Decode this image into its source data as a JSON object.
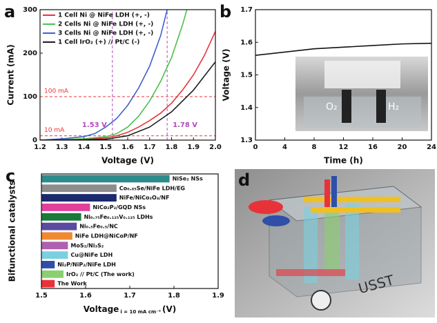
{
  "chart_data": [
    {
      "type": "line",
      "panel_label": "a",
      "xlabel": "Voltage (V)",
      "ylabel": "Current (mA)",
      "xlim": [
        1.2,
        2.0
      ],
      "ylim": [
        0,
        300
      ],
      "xticks": [
        1.2,
        1.3,
        1.4,
        1.5,
        1.6,
        1.7,
        1.8,
        1.9,
        {
          "value": 2.0,
          "label": "2.0"
        }
      ],
      "yticks": [
        0,
        100,
        200,
        300
      ],
      "legend": "upper left",
      "series": [
        {
          "name": "1 Cell  Ni @ NiFe LDH (+, -)",
          "color": "#e8323a",
          "x": [
            1.2,
            1.4,
            1.5,
            1.55,
            1.6,
            1.65,
            1.7,
            1.75,
            1.8,
            1.85,
            1.9,
            1.95,
            2.0
          ],
          "values": [
            0,
            2,
            5,
            10,
            18,
            30,
            45,
            62,
            85,
            115,
            150,
            195,
            250
          ]
        },
        {
          "name": "2 Cells Ni @ NiFe LDH (+, -)",
          "color": "#4cbf4c",
          "x": [
            1.2,
            1.4,
            1.5,
            1.55,
            1.6,
            1.65,
            1.7,
            1.75,
            1.8,
            1.85,
            1.87
          ],
          "values": [
            0,
            3,
            8,
            15,
            30,
            55,
            90,
            135,
            190,
            265,
            300
          ]
        },
        {
          "name": "3 Cells Ni @ NiFe LDH (+, -)",
          "color": "#3f5fcf",
          "x": [
            1.2,
            1.3,
            1.4,
            1.45,
            1.5,
            1.55,
            1.6,
            1.65,
            1.7,
            1.75,
            1.78
          ],
          "values": [
            0,
            3,
            8,
            15,
            30,
            50,
            80,
            120,
            170,
            240,
            300
          ]
        },
        {
          "name": "1 Cell  IrO₂ (+) // Pt/C (-)",
          "color": "#1a1a1a",
          "x": [
            1.2,
            1.4,
            1.5,
            1.6,
            1.7,
            1.8,
            1.9,
            2.0
          ],
          "values": [
            0,
            1,
            2,
            10,
            30,
            65,
            115,
            180
          ]
        }
      ],
      "annotations": [
        {
          "text": "100 mA",
          "y": 100,
          "color": "#e8323a"
        },
        {
          "text": "10 mA",
          "y": 10,
          "color": "#e8323a"
        },
        {
          "text": "1.53 V",
          "x": 1.53,
          "color": "#b04ac0"
        },
        {
          "text": "1.78 V",
          "x": 1.78,
          "color": "#b04ac0"
        }
      ]
    },
    {
      "type": "line",
      "panel_label": "b",
      "xlabel": "Time (h)",
      "ylabel": "Voltage (V)",
      "xlim": [
        0,
        24
      ],
      "ylim": [
        1.3,
        1.7
      ],
      "xticks": [
        0,
        4,
        8,
        12,
        16,
        20,
        24
      ],
      "yticks": [
        1.3,
        1.4,
        1.5,
        1.6,
        1.7
      ],
      "series": [
        {
          "name": null,
          "color": "#111111",
          "x": [
            0,
            2,
            4,
            8,
            12,
            16,
            20,
            24
          ],
          "values": [
            1.56,
            1.565,
            1.57,
            1.58,
            1.585,
            1.59,
            1.595,
            1.597
          ]
        }
      ],
      "inset_labels": [
        "O₂",
        "H₂"
      ]
    },
    {
      "type": "hbar",
      "panel_label": "c",
      "xlabel": [
        "Voltage",
        "i = 10 mA cm⁻²",
        "(V)"
      ],
      "ylabel": "Bifunctional catalysts",
      "xlim": [
        1.5,
        1.9
      ],
      "xticks": [
        1.5,
        1.6,
        1.7,
        1.8,
        1.9
      ],
      "categories": [
        "NiSe₂ NSs",
        "Co₀.₈₅Se/NiFe LDH/EG",
        "NiFe/NiCo₂O₄/NF",
        "NiCo₂P₂/GQD NSs",
        "Ni₀.₇₅Fe₀.₁₂₅V₀.₁₂₅ LDHs",
        "Ni₀.₅Fe₀.₅/NC",
        "NiFe LDH@NiCoP/NF",
        "MoS₂/Ni₃S₂",
        "Cu@NiFe LDH",
        "Ni₂P/NiP₂/NiFe LDH",
        "IrO₂ // Pt/C (The work)",
        "The Work"
      ],
      "values": [
        1.79,
        1.67,
        1.67,
        1.61,
        1.59,
        1.58,
        1.57,
        1.56,
        1.56,
        1.53,
        1.55,
        1.53
      ],
      "colors": [
        "#2e8b8b",
        "#8c8c8c",
        "#1a2a6c",
        "#e0409a",
        "#1a7a3a",
        "#5a4aa0",
        "#f08a30",
        "#b060b0",
        "#7ad0e0",
        "#2f4fa8",
        "#8ad070",
        "#e8323a"
      ]
    }
  ],
  "illustration": {
    "panel_label": "d",
    "text": "USST"
  }
}
